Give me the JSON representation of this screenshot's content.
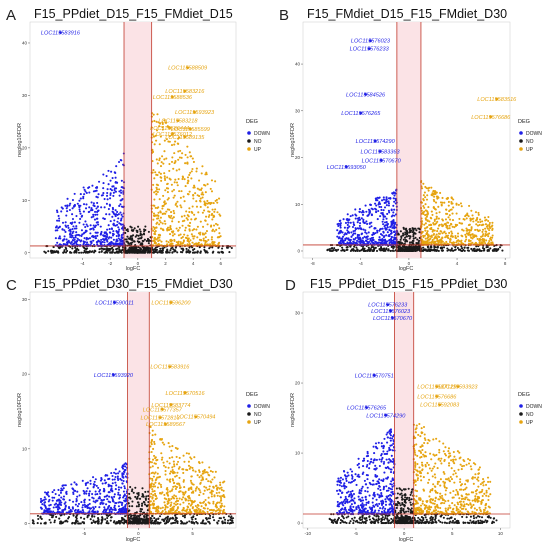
{
  "colors": {
    "DOWN": "#1f1fe6",
    "NO": "#1a1a1a",
    "UP": "#e6a410",
    "line": "#c0392b"
  },
  "chart_data": [
    {
      "type": "scatter",
      "letter": "A",
      "title": "F15_PPdiet_D15_F15_FMdiet_D15",
      "xlabel": "logFC",
      "ylabel": "neglog10FDR",
      "xlim": [
        -7.8,
        7.1
      ],
      "ylim": [
        -1,
        44
      ],
      "xticks": [
        -4,
        -2,
        0,
        2,
        4,
        6
      ],
      "yticks": [
        0,
        10,
        20,
        30,
        40
      ],
      "thresholds": {
        "fc": [
          -1,
          1
        ],
        "fdr": 1.3
      },
      "legend": {
        "title": "DEG",
        "items": [
          "DOWN",
          "NO",
          "UP"
        ],
        "position": "right"
      },
      "down_extent": {
        "xmin": -6,
        "ymax": 18
      },
      "up_extent": {
        "xmax": 6,
        "ymax": 28
      },
      "labels": [
        {
          "text": "LOC115583916",
          "x": -5.6,
          "y": 42,
          "group": "DOWN"
        },
        {
          "text": "LOC115588509",
          "x": 3.6,
          "y": 35.3,
          "group": "UP"
        },
        {
          "text": "LOC115583216",
          "x": 3.4,
          "y": 30.8,
          "group": "UP"
        },
        {
          "text": "LOC115588536",
          "x": 2.5,
          "y": 29.7,
          "group": "UP"
        },
        {
          "text": "LOC115593923",
          "x": 4.1,
          "y": 26.8,
          "group": "UP"
        },
        {
          "text": "LOC115583218",
          "x": 2.9,
          "y": 25.2,
          "group": "UP"
        },
        {
          "text": "LOC115586444",
          "x": 2.3,
          "y": 23.8,
          "group": "UP"
        },
        {
          "text": "LOC115585599",
          "x": 3.8,
          "y": 23.6,
          "group": "UP"
        },
        {
          "text": "LOC115576012",
          "x": 2.5,
          "y": 22.6,
          "group": "UP"
        },
        {
          "text": "LOC115589135",
          "x": 3.4,
          "y": 22.1,
          "group": "UP"
        }
      ]
    },
    {
      "type": "scatter",
      "letter": "B",
      "title": "F15_FMdiet_D15_F15_FMdiet_D30",
      "xlabel": "logFC",
      "ylabel": "neglog10FDR",
      "xlim": [
        -8.8,
        8.4
      ],
      "ylim": [
        -1.5,
        49
      ],
      "xticks": [
        -8,
        -4,
        0,
        4,
        8
      ],
      "yticks": [
        0,
        10,
        20,
        30,
        40
      ],
      "thresholds": {
        "fc": [
          -1,
          1
        ],
        "fdr": 1.3
      },
      "legend": {
        "title": "DEG",
        "items": [
          "DOWN",
          "NO",
          "UP"
        ],
        "position": "right"
      },
      "down_extent": {
        "xmin": -6,
        "ymax": 13
      },
      "up_extent": {
        "xmax": 7,
        "ymax": 14
      },
      "labels": [
        {
          "text": "LOC115576023",
          "x": -3.2,
          "y": 45,
          "group": "DOWN"
        },
        {
          "text": "LOC115576233",
          "x": -3.3,
          "y": 43.3,
          "group": "DOWN"
        },
        {
          "text": "LOC115584526",
          "x": -3.6,
          "y": 33.5,
          "group": "DOWN"
        },
        {
          "text": "LOC115576265",
          "x": -4,
          "y": 29.5,
          "group": "DOWN"
        },
        {
          "text": "LOC115574290",
          "x": -2.8,
          "y": 23.5,
          "group": "DOWN"
        },
        {
          "text": "LOC115583363",
          "x": -2.4,
          "y": 21.3,
          "group": "DOWN"
        },
        {
          "text": "LOC115570670",
          "x": -2.3,
          "y": 19.4,
          "group": "DOWN"
        },
        {
          "text": "LOC115593050",
          "x": -5.2,
          "y": 18,
          "group": "DOWN"
        },
        {
          "text": "LOC115583516",
          "x": 7.3,
          "y": 32.5,
          "group": "UP"
        },
        {
          "text": "LOC115576686",
          "x": 6.8,
          "y": 28.7,
          "group": "UP"
        }
      ]
    },
    {
      "type": "scatter",
      "letter": "C",
      "title": "F15_PPdiet_D30_F15_FMdiet_D30",
      "xlabel": "logFC",
      "ylabel": "neglog10FDR",
      "xlim": [
        -10,
        9
      ],
      "ylim": [
        -0.6,
        31
      ],
      "xticks": [
        -5,
        0,
        5
      ],
      "yticks": [
        0,
        10,
        20,
        30
      ],
      "thresholds": {
        "fc": [
          -1,
          1
        ],
        "fdr": 1.3
      },
      "legend": {
        "title": "DEG",
        "items": [
          "DOWN",
          "NO",
          "UP"
        ],
        "position": "right"
      },
      "down_extent": {
        "xmin": -9,
        "ymax": 7
      },
      "up_extent": {
        "xmax": 8,
        "ymax": 12
      },
      "labels": [
        {
          "text": "LOC115590011",
          "x": -2.2,
          "y": 29.6,
          "group": "DOWN"
        },
        {
          "text": "LOC115593920",
          "x": -2.3,
          "y": 19.9,
          "group": "DOWN"
        },
        {
          "text": "LOC115596200",
          "x": 3,
          "y": 29.6,
          "group": "UP"
        },
        {
          "text": "LOC115583916",
          "x": 2.9,
          "y": 21,
          "group": "UP"
        },
        {
          "text": "LOC115570516",
          "x": 4.3,
          "y": 17.5,
          "group": "UP"
        },
        {
          "text": "LOC115583774",
          "x": 3,
          "y": 15.9,
          "group": "UP"
        },
        {
          "text": "LOC115577357",
          "x": 2.2,
          "y": 15.3,
          "group": "UP"
        },
        {
          "text": "LOC115570494",
          "x": 5.3,
          "y": 14.3,
          "group": "UP"
        },
        {
          "text": "LOC115572813",
          "x": 2,
          "y": 14.2,
          "group": "UP"
        },
        {
          "text": "LOC115589567",
          "x": 2.5,
          "y": 13.3,
          "group": "UP"
        }
      ]
    },
    {
      "type": "scatter",
      "letter": "D",
      "title": "F15_PPdiet_D15_F15_PPdiet_D30",
      "xlabel": "logFC",
      "ylabel": "neglog10FDR",
      "xlim": [
        -10.5,
        11
      ],
      "ylim": [
        -0.7,
        33
      ],
      "xticks": [
        -10,
        -5,
        0,
        5,
        10
      ],
      "yticks": [
        0,
        10,
        20,
        30
      ],
      "thresholds": {
        "fc": [
          -1,
          1
        ],
        "fdr": 1.3
      },
      "legend": {
        "title": "DEG",
        "items": [
          "DOWN",
          "NO",
          "UP"
        ],
        "position": "right"
      },
      "down_extent": {
        "xmin": -7,
        "ymax": 13
      },
      "up_extent": {
        "xmax": 9,
        "ymax": 14
      },
      "labels": [
        {
          "text": "LOC115576233",
          "x": -1.7,
          "y": 31.2,
          "group": "DOWN"
        },
        {
          "text": "LOC115576023",
          "x": -1.4,
          "y": 30.3,
          "group": "DOWN"
        },
        {
          "text": "LOC115570670",
          "x": -1.2,
          "y": 29.3,
          "group": "DOWN"
        },
        {
          "text": "LOC115570751",
          "x": -3.1,
          "y": 21.1,
          "group": "DOWN"
        },
        {
          "text": "LOC115576265",
          "x": -3.9,
          "y": 16.5,
          "group": "DOWN"
        },
        {
          "text": "LOC115574290",
          "x": -1.9,
          "y": 15.4,
          "group": "DOWN"
        },
        {
          "text": "LOC115587129",
          "x": 3.4,
          "y": 19.5,
          "group": "UP"
        },
        {
          "text": "LOC115593923",
          "x": 5.6,
          "y": 19.5,
          "group": "UP"
        },
        {
          "text": "LOC115576686",
          "x": 3.4,
          "y": 18.1,
          "group": "UP"
        },
        {
          "text": "LOC115592083",
          "x": 3.7,
          "y": 16.9,
          "group": "UP"
        }
      ]
    }
  ]
}
